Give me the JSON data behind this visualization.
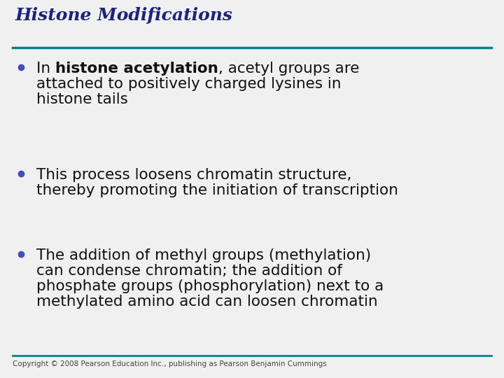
{
  "title": "Histone Modifications",
  "title_color": "#1a237e",
  "title_fontsize": 18,
  "background_color": "#f0f0f0",
  "top_line_color": "#00838f",
  "bottom_line_color": "#00838f",
  "bullet_color": "#3f51b5",
  "copyright": "Copyright © 2008 Pearson Education Inc., publishing as Pearson Benjamin Cummings",
  "copyright_fontsize": 7.5,
  "text_color": "#111111",
  "text_fontsize": 15.5,
  "bullet_points": [
    {
      "lines": [
        [
          {
            "text": "In ",
            "bold": false
          },
          {
            "text": "histone acetylation",
            "bold": true
          },
          {
            "text": ", acetyl groups are",
            "bold": false
          }
        ],
        [
          {
            "text": "attached to positively charged lysines in",
            "bold": false
          }
        ],
        [
          {
            "text": "histone tails",
            "bold": false
          }
        ]
      ]
    },
    {
      "lines": [
        [
          {
            "text": "This process loosens chromatin structure,",
            "bold": false
          }
        ],
        [
          {
            "text": "thereby promoting the initiation of transcription",
            "bold": false
          }
        ]
      ]
    },
    {
      "lines": [
        [
          {
            "text": "The addition of methyl groups (methylation)",
            "bold": false
          }
        ],
        [
          {
            "text": "can condense chromatin; the addition of",
            "bold": false
          }
        ],
        [
          {
            "text": "phosphate groups (phosphorylation) next to a",
            "bold": false
          }
        ],
        [
          {
            "text": "methylated amino acid can loosen chromatin",
            "bold": false
          }
        ]
      ]
    }
  ]
}
